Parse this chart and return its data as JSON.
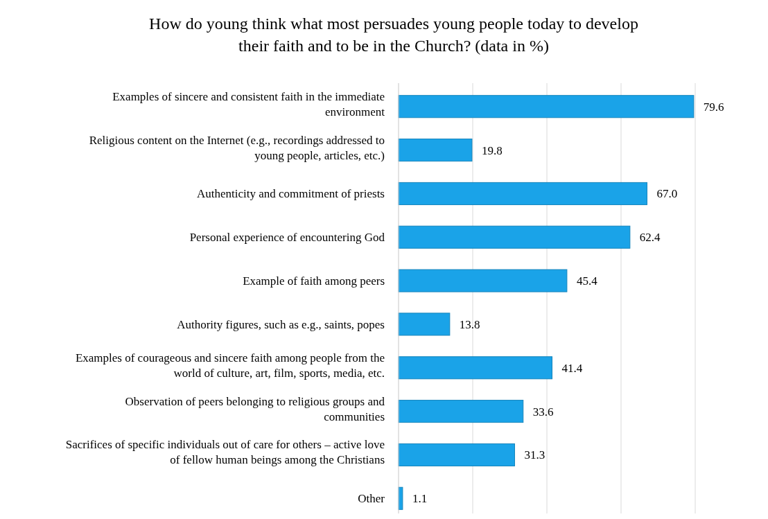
{
  "chart_data": {
    "type": "bar",
    "orientation": "horizontal",
    "title": "How do young think what most persuades young people today to develop their faith and to be in the Church? (data in %)",
    "categories": [
      "Examples of sincere and consistent faith in the immediate environment",
      "Religious content on the Internet (e.g., recordings addressed to young people, articles, etc.)",
      "Authenticity and commitment of priests",
      "Personal experience of encountering God",
      "Example of faith among peers",
      "Authority figures, such as e.g., saints, popes",
      "Examples of courageous and sincere faith among people from the world of culture, art, film, sports, media, etc.",
      "Observation of peers belonging to religious groups and communities",
      "Sacrifices of specific individuals out of care for others – active love of fellow human beings among the Christians",
      "Other"
    ],
    "values": [
      79.6,
      19.8,
      67.0,
      62.4,
      45.4,
      13.8,
      41.4,
      33.6,
      31.3,
      1.1
    ],
    "value_labels": [
      "79.6",
      "19.8",
      "67.0",
      "62.4",
      "45.4",
      "13.8",
      "41.4",
      "33.6",
      "31.3",
      "1.1"
    ],
    "color": "#1aa3e8",
    "xlim": [
      0,
      80
    ],
    "xticks": [
      {
        "value": 0,
        "label": null
      },
      {
        "value": 20,
        "label": null
      },
      {
        "value": 40,
        "label": null
      },
      {
        "value": 60,
        "label": null
      },
      {
        "value": 80,
        "label": null
      }
    ],
    "tick_labels": "y",
    "grid": "x"
  }
}
